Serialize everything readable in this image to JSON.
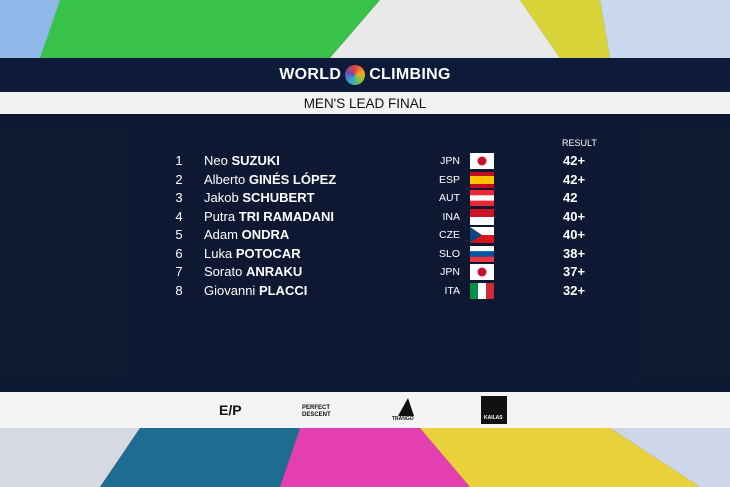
{
  "header": {
    "title": "WORLD",
    "title2": "CLIMBING",
    "subtitle": "MEN'S LEAD FINAL"
  },
  "table": {
    "column": "RESULT",
    "rows": [
      {
        "rank": 1,
        "first": "Neo",
        "last": "SUZUKI",
        "country": "JPN",
        "result": "42+"
      },
      {
        "rank": 2,
        "first": "Alberto",
        "last": "GINÉS LÓPEZ",
        "country": "ESP",
        "result": "42+"
      },
      {
        "rank": 3,
        "first": "Jakob",
        "last": "SCHUBERT",
        "country": "AUT",
        "result": "42"
      },
      {
        "rank": 4,
        "first": "Putra",
        "last": "TRI RAMADANI",
        "country": "INA",
        "result": "40+"
      },
      {
        "rank": 5,
        "first": "Adam",
        "last": "ONDRA",
        "country": "CZE",
        "result": "40+"
      },
      {
        "rank": 6,
        "first": "Luka",
        "last": "POTOCAR",
        "country": "SLO",
        "result": "38+"
      },
      {
        "rank": 7,
        "first": "Sorato",
        "last": "ANRAKU",
        "country": "JPN",
        "result": "37+"
      },
      {
        "rank": 8,
        "first": "Giovanni",
        "last": "PLACCI",
        "country": "ITA",
        "result": "32+"
      }
    ]
  },
  "sponsors": [
    "E/P",
    "PERFECT DESCENT",
    "TRANGO",
    "KAILAS"
  ]
}
